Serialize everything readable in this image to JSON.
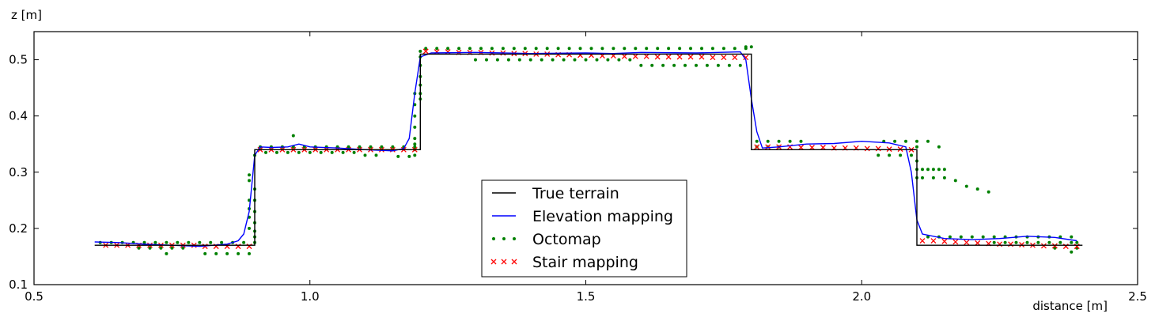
{
  "chart_data": {
    "type": "line",
    "title": "",
    "xlabel": "distance [m]",
    "ylabel": "z [m]",
    "xlim": [
      0.5,
      2.5
    ],
    "ylim": [
      0.1,
      0.55
    ],
    "xticks": [
      0.5,
      1.0,
      1.5,
      2.0,
      2.5
    ],
    "xtick_labels": [
      "0.5",
      "1.0",
      "1.5",
      "2.0",
      "2.5"
    ],
    "yticks": [
      0.1,
      0.2,
      0.3,
      0.4,
      0.5
    ],
    "ytick_labels": [
      "0.1",
      "0.2",
      "0.3",
      "0.4",
      "0.5"
    ],
    "grid": false,
    "legend_position": "bottom-center",
    "series": [
      {
        "name": "True terrain",
        "style": "line",
        "color": "#000000",
        "x": [
          0.61,
          0.9,
          0.9,
          1.2,
          1.2,
          1.8,
          1.8,
          2.1,
          2.1,
          2.4
        ],
        "y": [
          0.17,
          0.17,
          0.34,
          0.34,
          0.51,
          0.51,
          0.34,
          0.34,
          0.17,
          0.17
        ]
      },
      {
        "name": "Elevation mapping",
        "style": "line",
        "color": "#0000ff",
        "x": [
          0.61,
          0.65,
          0.7,
          0.75,
          0.8,
          0.85,
          0.87,
          0.88,
          0.89,
          0.9,
          0.91,
          0.93,
          0.96,
          0.98,
          1.0,
          1.05,
          1.1,
          1.15,
          1.17,
          1.18,
          1.19,
          1.2,
          1.22,
          1.3,
          1.4,
          1.5,
          1.55,
          1.6,
          1.7,
          1.78,
          1.79,
          1.8,
          1.81,
          1.82,
          1.85,
          1.9,
          1.95,
          2.0,
          2.05,
          2.08,
          2.09,
          2.1,
          2.11,
          2.15,
          2.2,
          2.25,
          2.3,
          2.35,
          2.39
        ],
        "y": [
          0.176,
          0.175,
          0.172,
          0.17,
          0.168,
          0.172,
          0.178,
          0.19,
          0.23,
          0.33,
          0.345,
          0.344,
          0.345,
          0.35,
          0.345,
          0.343,
          0.34,
          0.338,
          0.342,
          0.36,
          0.44,
          0.505,
          0.512,
          0.513,
          0.511,
          0.512,
          0.511,
          0.513,
          0.512,
          0.514,
          0.5,
          0.43,
          0.372,
          0.343,
          0.345,
          0.35,
          0.351,
          0.355,
          0.352,
          0.345,
          0.3,
          0.215,
          0.19,
          0.182,
          0.18,
          0.182,
          0.186,
          0.184,
          0.178
        ]
      },
      {
        "name": "Octomap",
        "style": "dots",
        "color": "#008000",
        "x": [
          0.62,
          0.64,
          0.66,
          0.68,
          0.7,
          0.72,
          0.74,
          0.76,
          0.78,
          0.8,
          0.82,
          0.84,
          0.86,
          0.88,
          0.69,
          0.71,
          0.73,
          0.75,
          0.77,
          0.81,
          0.83,
          0.85,
          0.87,
          0.89,
          0.74,
          0.89,
          0.89,
          0.89,
          0.89,
          0.89,
          0.89,
          0.9,
          0.9,
          0.9,
          0.9,
          0.9,
          0.9,
          0.9,
          0.9,
          0.91,
          0.93,
          0.95,
          0.97,
          0.99,
          1.01,
          1.03,
          1.05,
          1.07,
          1.09,
          1.11,
          1.13,
          1.15,
          1.17,
          1.19,
          0.92,
          0.94,
          0.96,
          0.98,
          1.0,
          1.02,
          1.04,
          1.06,
          1.08,
          0.97,
          1.1,
          1.12,
          1.16,
          1.18,
          1.19,
          1.19,
          1.19,
          1.19,
          1.19,
          1.19,
          1.19,
          1.19,
          1.2,
          1.2,
          1.2,
          1.2,
          1.2,
          1.2,
          1.2,
          1.21,
          1.23,
          1.25,
          1.27,
          1.29,
          1.31,
          1.33,
          1.35,
          1.37,
          1.39,
          1.41,
          1.43,
          1.45,
          1.47,
          1.49,
          1.51,
          1.53,
          1.55,
          1.57,
          1.59,
          1.61,
          1.63,
          1.65,
          1.67,
          1.69,
          1.71,
          1.73,
          1.75,
          1.77,
          1.79,
          1.3,
          1.32,
          1.34,
          1.36,
          1.38,
          1.4,
          1.42,
          1.44,
          1.46,
          1.48,
          1.5,
          1.52,
          1.54,
          1.56,
          1.58,
          1.7,
          1.72,
          1.74,
          1.76,
          1.78,
          1.6,
          1.62,
          1.64,
          1.66,
          1.68,
          1.79,
          1.8,
          1.81,
          1.83,
          1.85,
          1.87,
          1.89,
          1.81,
          1.83,
          1.85,
          2.04,
          2.06,
          2.08,
          2.1,
          2.12,
          2.14,
          2.03,
          2.05,
          2.07,
          2.09,
          2.1,
          2.1,
          2.1,
          2.11,
          2.12,
          2.13,
          2.14,
          2.15,
          2.1,
          2.11,
          2.13,
          2.15,
          2.17,
          2.19,
          2.21,
          2.23,
          2.12,
          2.14,
          2.16,
          2.18,
          2.2,
          2.22,
          2.24,
          2.26,
          2.28,
          2.3,
          2.32,
          2.34,
          2.36,
          2.38,
          2.24,
          2.26,
          2.28,
          2.3,
          2.32,
          2.34,
          2.36,
          2.38,
          2.39,
          2.39,
          2.35,
          2.38
        ],
        "y": [
          0.175,
          0.175,
          0.175,
          0.175,
          0.175,
          0.175,
          0.175,
          0.175,
          0.175,
          0.175,
          0.175,
          0.175,
          0.175,
          0.175,
          0.165,
          0.165,
          0.165,
          0.165,
          0.165,
          0.155,
          0.155,
          0.155,
          0.155,
          0.155,
          0.155,
          0.295,
          0.285,
          0.25,
          0.235,
          0.22,
          0.2,
          0.33,
          0.27,
          0.25,
          0.23,
          0.21,
          0.195,
          0.185,
          0.175,
          0.345,
          0.345,
          0.345,
          0.345,
          0.345,
          0.345,
          0.345,
          0.345,
          0.345,
          0.345,
          0.345,
          0.345,
          0.345,
          0.345,
          0.345,
          0.335,
          0.335,
          0.335,
          0.335,
          0.335,
          0.335,
          0.335,
          0.335,
          0.335,
          0.365,
          0.33,
          0.33,
          0.328,
          0.328,
          0.44,
          0.42,
          0.4,
          0.38,
          0.36,
          0.35,
          0.34,
          0.33,
          0.515,
          0.505,
          0.49,
          0.47,
          0.455,
          0.44,
          0.43,
          0.52,
          0.52,
          0.52,
          0.52,
          0.52,
          0.52,
          0.52,
          0.52,
          0.52,
          0.52,
          0.52,
          0.52,
          0.52,
          0.52,
          0.52,
          0.52,
          0.52,
          0.52,
          0.52,
          0.52,
          0.52,
          0.52,
          0.52,
          0.52,
          0.52,
          0.52,
          0.52,
          0.52,
          0.52,
          0.52,
          0.5,
          0.5,
          0.5,
          0.5,
          0.5,
          0.5,
          0.5,
          0.5,
          0.5,
          0.5,
          0.5,
          0.5,
          0.5,
          0.5,
          0.5,
          0.49,
          0.49,
          0.49,
          0.49,
          0.49,
          0.49,
          0.49,
          0.49,
          0.49,
          0.49,
          0.523,
          0.523,
          0.355,
          0.355,
          0.355,
          0.355,
          0.355,
          0.345,
          0.345,
          0.345,
          0.355,
          0.355,
          0.355,
          0.355,
          0.355,
          0.345,
          0.33,
          0.33,
          0.33,
          0.33,
          0.345,
          0.32,
          0.305,
          0.305,
          0.305,
          0.305,
          0.305,
          0.305,
          0.29,
          0.29,
          0.29,
          0.29,
          0.285,
          0.275,
          0.27,
          0.265,
          0.185,
          0.185,
          0.185,
          0.185,
          0.185,
          0.185,
          0.185,
          0.185,
          0.185,
          0.185,
          0.185,
          0.185,
          0.185,
          0.185,
          0.175,
          0.175,
          0.175,
          0.175,
          0.175,
          0.175,
          0.175,
          0.175,
          0.175,
          0.165,
          0.165,
          0.158
        ]
      },
      {
        "name": "Stair mapping",
        "style": "x",
        "color": "#ff0000",
        "x": [
          0.63,
          0.65,
          0.67,
          0.69,
          0.71,
          0.73,
          0.75,
          0.77,
          0.79,
          0.81,
          0.83,
          0.85,
          0.87,
          0.89,
          0.91,
          0.93,
          0.95,
          0.97,
          0.99,
          1.01,
          1.03,
          1.05,
          1.07,
          1.09,
          1.11,
          1.13,
          1.15,
          1.17,
          1.19,
          1.21,
          1.23,
          1.25,
          1.27,
          1.29,
          1.31,
          1.33,
          1.35,
          1.37,
          1.39,
          1.41,
          1.43,
          1.45,
          1.47,
          1.49,
          1.51,
          1.53,
          1.55,
          1.57,
          1.59,
          1.61,
          1.63,
          1.65,
          1.67,
          1.69,
          1.71,
          1.73,
          1.75,
          1.77,
          1.79,
          1.81,
          1.83,
          1.85,
          1.87,
          1.89,
          1.91,
          1.93,
          1.95,
          1.97,
          1.99,
          2.01,
          2.03,
          2.05,
          2.07,
          2.09,
          2.11,
          2.13,
          2.15,
          2.17,
          2.19,
          2.21,
          2.23,
          2.25,
          2.27,
          2.29,
          2.31,
          2.33,
          2.35,
          2.37,
          2.39
        ],
        "y": [
          0.17,
          0.17,
          0.17,
          0.17,
          0.17,
          0.17,
          0.17,
          0.17,
          0.17,
          0.168,
          0.168,
          0.168,
          0.168,
          0.168,
          0.34,
          0.34,
          0.34,
          0.34,
          0.34,
          0.34,
          0.34,
          0.34,
          0.34,
          0.34,
          0.34,
          0.34,
          0.34,
          0.34,
          0.34,
          0.515,
          0.514,
          0.514,
          0.513,
          0.513,
          0.513,
          0.512,
          0.512,
          0.511,
          0.511,
          0.51,
          0.51,
          0.509,
          0.509,
          0.508,
          0.508,
          0.507,
          0.507,
          0.506,
          0.506,
          0.506,
          0.505,
          0.505,
          0.505,
          0.505,
          0.505,
          0.504,
          0.504,
          0.504,
          0.504,
          0.345,
          0.345,
          0.345,
          0.345,
          0.344,
          0.344,
          0.344,
          0.343,
          0.343,
          0.343,
          0.342,
          0.342,
          0.341,
          0.341,
          0.34,
          0.178,
          0.178,
          0.177,
          0.176,
          0.175,
          0.174,
          0.173,
          0.172,
          0.172,
          0.171,
          0.17,
          0.169,
          0.169,
          0.168,
          0.168
        ]
      }
    ]
  }
}
